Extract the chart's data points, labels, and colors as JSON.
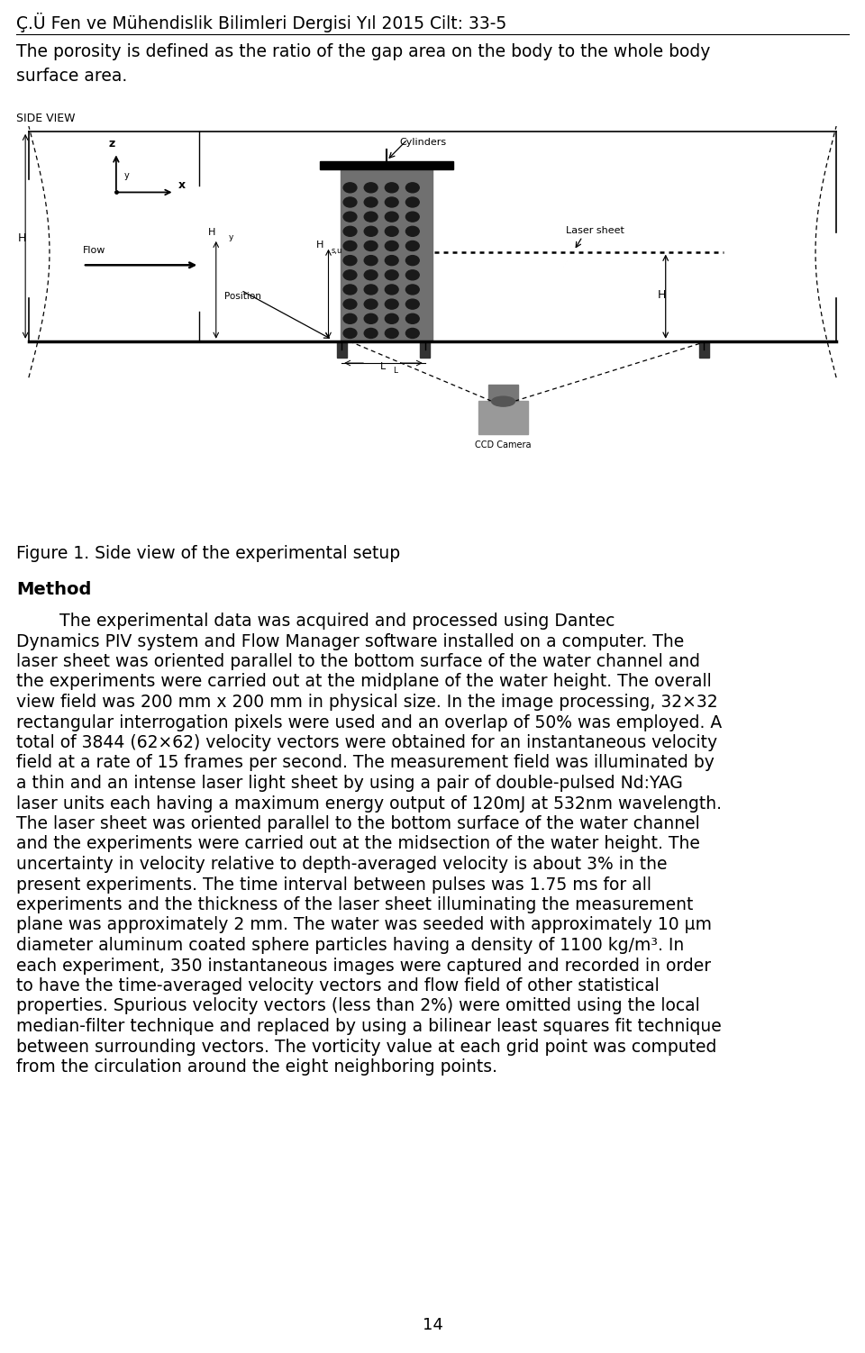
{
  "page_width": 9.6,
  "page_height": 15.02,
  "dpi": 100,
  "background_color": "#ffffff",
  "header_text": "Ç.Ü Fen ve Mühendislik Bilimleri Dergisi Yıl 2015 Cilt: 33-5",
  "header_fontsize": 13.5,
  "intro_text": "The porosity is defined as the ratio of the gap area on the body to the whole body\nsurface area.",
  "intro_fontsize": 13.5,
  "side_view_label": "SIDE VIEW",
  "figure_caption": "Figure 1. Side view of the experimental setup",
  "figure_caption_fontsize": 13.5,
  "method_heading": "Method",
  "method_heading_fontsize": 14,
  "body_lines": [
    "        The experimental data was acquired and processed using Dantec",
    "Dynamics PIV system and Flow Manager software installed on a computer. The",
    "laser sheet was oriented parallel to the bottom surface of the water channel and",
    "the experiments were carried out at the midplane of the water height. The overall",
    "view field was 200 mm x 200 mm in physical size. In the image processing, 32×32",
    "rectangular interrogation pixels were used and an overlap of 50% was employed. A",
    "total of 3844 (62×62) velocity vectors were obtained for an instantaneous velocity",
    "field at a rate of 15 frames per second. The measurement field was illuminated by",
    "a thin and an intense laser light sheet by using a pair of double-pulsed Nd:YAG",
    "laser units each having a maximum energy output of 120mJ at 532nm wavelength.",
    "The laser sheet was oriented parallel to the bottom surface of the water channel",
    "and the experiments were carried out at the midsection of the water height. The",
    "uncertainty in velocity relative to depth-averaged velocity is about 3% in the",
    "present experiments. The time interval between pulses was 1.75 ms for all",
    "experiments and the thickness of the laser sheet illuminating the measurement",
    "plane was approximately 2 mm. The water was seeded with approximately 10 μm",
    "diameter aluminum coated sphere particles having a density of 1100 kg/m³. In",
    "each experiment, 350 instantaneous images were captured and recorded in order",
    "to have the time-averaged velocity vectors and flow field of other statistical",
    "properties. Spurious velocity vectors (less than 2%) were omitted using the local",
    "median-filter technique and replaced by using a bilinear least squares fit technique",
    "between surrounding vectors. The vorticity value at each grid point was computed",
    "from the circulation around the eight neighboring points."
  ],
  "body_fontsize": 13.5,
  "footer_text": "14",
  "footer_fontsize": 13
}
